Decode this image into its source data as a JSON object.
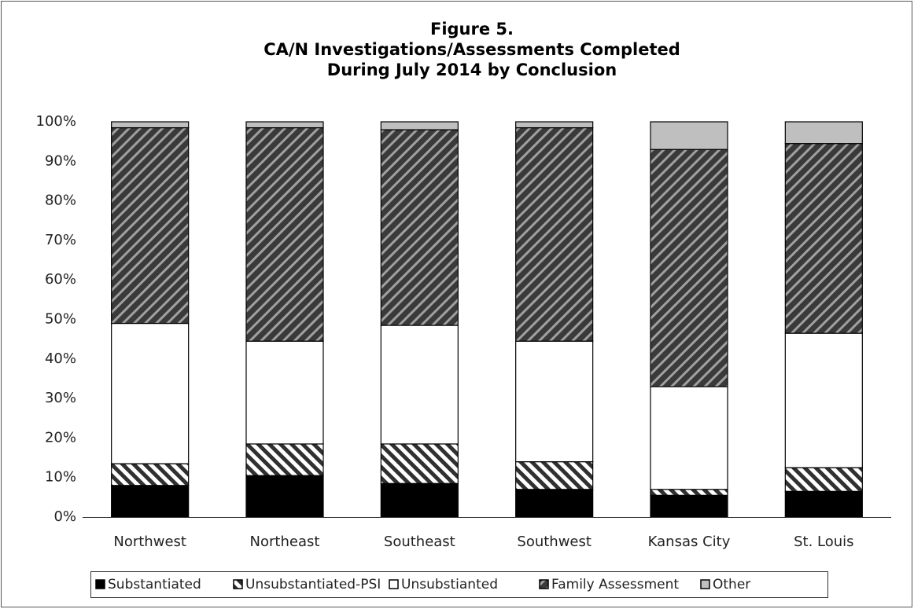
{
  "chart_data": {
    "type": "stacked-bar",
    "title": [
      "Figure 5.",
      "CA/N Investigations/Assessments Completed",
      "During July 2014 by Conclusion"
    ],
    "categories": [
      "Northwest",
      "Northeast",
      "Southeast",
      "Southwest",
      "Kansas City",
      "St. Louis"
    ],
    "series": [
      {
        "name": "Substantiated",
        "color": "#000000",
        "values": [
          8,
          10.5,
          8.5,
          7,
          5.5,
          6.5
        ]
      },
      {
        "name": "Unsubstantiated-PSI",
        "color": "#ffffff",
        "pattern": {
          "color": "#303030",
          "direction": "back"
        },
        "values": [
          5.5,
          8,
          10,
          7,
          1.5,
          6
        ]
      },
      {
        "name": "Unsubstianted",
        "color": "#ffffff",
        "values": [
          35.5,
          26,
          30,
          30.5,
          26,
          34
        ]
      },
      {
        "name": "Family Assessment",
        "color": "#3a3a3a",
        "pattern": {
          "color": "#a0a0a0",
          "direction": "fwd"
        },
        "values": [
          49.5,
          54,
          49.5,
          54,
          60,
          48
        ]
      },
      {
        "name": "Other",
        "color": "#bfbfbf",
        "values": [
          1.5,
          1.5,
          2,
          1.5,
          7,
          5.5
        ]
      }
    ],
    "ylim": [
      0,
      100
    ],
    "yticks": [
      {
        "value": 0,
        "label": "0%"
      },
      {
        "value": 10,
        "label": "10%"
      },
      {
        "value": 20,
        "label": "20%"
      },
      {
        "value": 30,
        "label": "30%"
      },
      {
        "value": 40,
        "label": "40%"
      },
      {
        "value": 50,
        "label": "50%"
      },
      {
        "value": 60,
        "label": "60%"
      },
      {
        "value": 70,
        "label": "70%"
      },
      {
        "value": 80,
        "label": "80%"
      },
      {
        "value": 90,
        "label": "90%"
      },
      {
        "value": 100,
        "label": "100%"
      }
    ],
    "grid": false,
    "legend": "bottom"
  }
}
